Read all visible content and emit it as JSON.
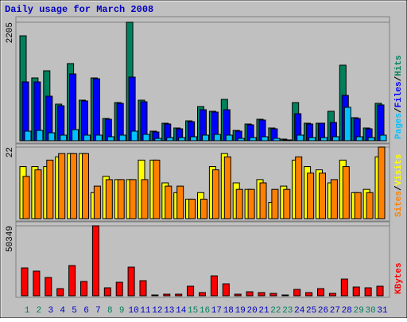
{
  "chart_data": [
    {
      "type": "bar",
      "title": "Daily usage for March 2008",
      "title_color": "#0000c0",
      "ylim": [
        0,
        2205
      ],
      "yticks": [
        2205
      ],
      "series": [
        {
          "name": "Hits",
          "color": "#00805c",
          "values": [
            1953,
            1169,
            1302,
            681,
            1436,
            755,
            1169,
            414,
            710,
            2205,
            755,
            178,
            326,
            237,
            370,
            636,
            548,
            770,
            192,
            311,
            400,
            237,
            30,
            710,
            326,
            326,
            548,
            1406,
            429,
            237,
            696
          ]
        },
        {
          "name": "Files",
          "color": "#0000ff",
          "values": [
            1095,
            1095,
            829,
            651,
            1243,
            740,
            1154,
            400,
            696,
            1184,
            725,
            163,
            311,
            222,
            355,
            577,
            533,
            577,
            178,
            296,
            385,
            222,
            15,
            503,
            311,
            326,
            340,
            844,
            414,
            222,
            666
          ]
        },
        {
          "name": "Pages",
          "color": "#00c0ff",
          "values": [
            178,
            192,
            148,
            104,
            207,
            104,
            104,
            74,
            104,
            178,
            118,
            44,
            59,
            59,
            74,
            104,
            118,
            104,
            44,
            59,
            74,
            44,
            15,
            104,
            59,
            59,
            74,
            622,
            74,
            59,
            104
          ]
        }
      ]
    },
    {
      "type": "bar",
      "ylim": [
        0,
        22
      ],
      "yticks": [
        22
      ],
      "series": [
        {
          "name": "Visits",
          "color": "#ffff00",
          "values": [
            16,
            16,
            16,
            19,
            20,
            20,
            8,
            13,
            12,
            12,
            18,
            18,
            11,
            8,
            6,
            8,
            16,
            20,
            11,
            9,
            12,
            5,
            10,
            18,
            16,
            15,
            11,
            18,
            8,
            9,
            19
          ]
        },
        {
          "name": "Sites",
          "color": "#ff8000",
          "values": [
            13,
            15,
            18,
            20,
            20,
            20,
            10,
            12,
            12,
            12,
            12,
            18,
            10,
            10,
            6,
            6,
            15,
            19,
            9,
            9,
            11,
            9,
            9,
            19,
            14,
            14,
            12,
            16,
            8,
            8,
            22
          ]
        }
      ]
    },
    {
      "type": "bar",
      "ylim": [
        0,
        50349
      ],
      "yticks": [
        50349
      ],
      "categories": [
        "1",
        "2",
        "3",
        "4",
        "5",
        "6",
        "7",
        "8",
        "9",
        "10",
        "11",
        "12",
        "13",
        "14",
        "15",
        "16",
        "17",
        "18",
        "19",
        "20",
        "21",
        "22",
        "23",
        "24",
        "25",
        "26",
        "27",
        "28",
        "29",
        "30",
        "31"
      ],
      "category_colors": [
        "#00805c",
        "#00805c",
        "#0000c0",
        "#0000c0",
        "#0000c0",
        "#0000c0",
        "#0000c0",
        "#00805c",
        "#00805c",
        "#0000c0",
        "#0000c0",
        "#0000c0",
        "#0000c0",
        "#0000c0",
        "#00805c",
        "#00805c",
        "#0000c0",
        "#0000c0",
        "#0000c0",
        "#0000c0",
        "#0000c0",
        "#00805c",
        "#00805c",
        "#0000c0",
        "#0000c0",
        "#0000c0",
        "#0000c0",
        "#0000c0",
        "#00805c",
        "#00805c",
        "#0000c0"
      ],
      "series": [
        {
          "name": "KBytes",
          "color": "#ff0000",
          "values": [
            20025,
            17737,
            13160,
            5150,
            21741,
            10299,
            50349,
            5722,
            9727,
            20597,
            10871,
            572,
            1144,
            1144,
            6866,
            2289,
            14303,
            8582,
            1144,
            2861,
            2289,
            1716,
            572,
            4577,
            2289,
            5150,
            1716,
            12015,
            6294,
            5722,
            6866
          ]
        }
      ]
    }
  ]
}
